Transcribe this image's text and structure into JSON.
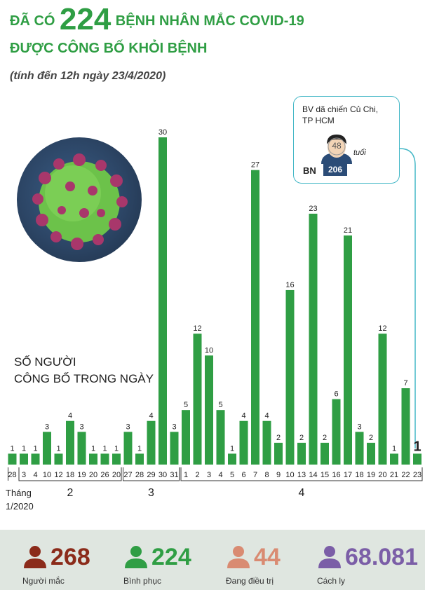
{
  "header": {
    "title_prefix": "ĐÃ CÓ",
    "title_number": "224",
    "title_suffix": "BỆNH NHÂN MẮC COVID-19",
    "title_line2": "ĐƯỢC CÔNG BỐ KHỎI BỆNH",
    "subtitle": "(tính đến 12h ngày 23/4/2020)"
  },
  "annotation": {
    "line1": "SỐ NGƯỜI",
    "line2": "CÔNG BỐ TRONG NGÀY"
  },
  "callout": {
    "line1": "BV dã chiến Củ Chi,",
    "line2": "TP HCM",
    "age": "48",
    "age_unit": "tuổi",
    "patient_label": "BN",
    "patient_id": "206"
  },
  "colors": {
    "bar": "#2f9e44",
    "title": "#2f9e44",
    "callout_border": "#45b8c7"
  },
  "chart_data": {
    "type": "bar",
    "title": "SỐ NGƯỜI CÔNG BỐ TRONG NGÀY",
    "categories": [
      "28",
      "3",
      "4",
      "10",
      "12",
      "18",
      "19",
      "20",
      "26",
      "20",
      "27",
      "28",
      "29",
      "30",
      "31",
      "1",
      "2",
      "3",
      "4",
      "5",
      "6",
      "7",
      "8",
      "9",
      "10",
      "13",
      "14",
      "15",
      "16",
      "17",
      "18",
      "19",
      "20",
      "21",
      "22",
      "23"
    ],
    "values": [
      1,
      1,
      1,
      3,
      1,
      4,
      3,
      1,
      1,
      1,
      3,
      1,
      4,
      30,
      3,
      5,
      12,
      10,
      5,
      1,
      4,
      27,
      4,
      2,
      16,
      2,
      23,
      2,
      6,
      21,
      3,
      2,
      12,
      1,
      7,
      1
    ],
    "value_labels": [
      "1",
      "1",
      "1",
      "3",
      "1",
      "4",
      "3",
      "1",
      "1",
      "1",
      "3",
      "1",
      "4",
      "30",
      "3",
      "5",
      "12",
      "10",
      "5",
      "1",
      "4",
      "27",
      "4",
      "2",
      "16",
      "2",
      "23",
      "2",
      "6",
      "21",
      "3",
      "2",
      "12",
      "1",
      "7",
      "1"
    ],
    "month_groups": [
      {
        "label": "Tháng 1/2020",
        "start": 0,
        "end": 0
      },
      {
        "label": "2",
        "start": 1,
        "end": 9
      },
      {
        "label": "3",
        "start": 10,
        "end": 14
      },
      {
        "label": "4",
        "start": 15,
        "end": 35
      }
    ],
    "ylim": [
      0,
      30
    ],
    "xlabel": "",
    "ylabel": "",
    "grid": false
  },
  "footer": {
    "stats": [
      {
        "value": "268",
        "label": "Người mắc",
        "color": "#8b2b1a"
      },
      {
        "value": "224",
        "label": "Bình phục",
        "color": "#2f9e44"
      },
      {
        "value": "44",
        "label": "Đang điều trị",
        "color": "#d98b72"
      },
      {
        "value": "68.081",
        "label": "Cách ly",
        "color": "#7b5ea7"
      }
    ]
  }
}
